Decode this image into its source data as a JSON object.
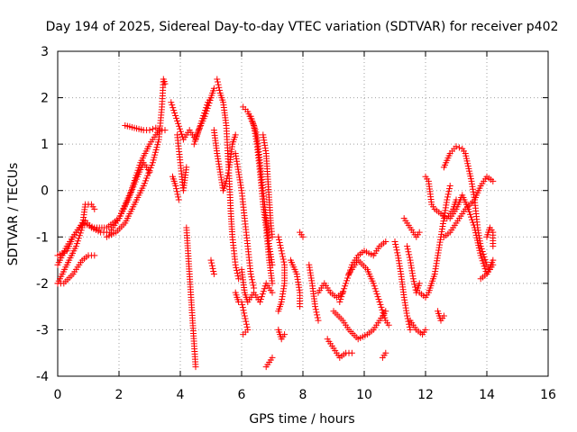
{
  "chart_data": {
    "type": "scatter",
    "title": "Day 194 of 2025, Sidereal Day-to-day VTEC variation (SDTVAR) for receiver p402",
    "xlabel": "GPS time / hours",
    "ylabel": "SDTVAR / TECUs",
    "xlim": [
      0,
      16
    ],
    "ylim": [
      -4,
      3
    ],
    "xticks": [
      "0",
      "2",
      "4",
      "6",
      "8",
      "10",
      "12",
      "14",
      "16"
    ],
    "yticks": [
      "-4",
      "-3",
      "-2",
      "-1",
      "0",
      "1",
      "2",
      "3"
    ],
    "grid": true,
    "marker": "+",
    "marker_color": "#ff0000",
    "series": [
      {
        "tracks": [
          [
            [
              0.0,
              -2.0
            ],
            [
              0.3,
              -1.6
            ],
            [
              0.6,
              -1.2
            ],
            [
              0.8,
              -0.8
            ],
            [
              0.9,
              -0.3
            ],
            [
              1.1,
              -0.3
            ],
            [
              1.2,
              -0.4
            ]
          ],
          [
            [
              0.0,
              -1.6
            ],
            [
              0.3,
              -1.2
            ],
            [
              0.6,
              -0.9
            ],
            [
              0.9,
              -0.65
            ],
            [
              1.1,
              -0.8
            ],
            [
              1.4,
              -0.9
            ],
            [
              1.7,
              -0.9
            ],
            [
              2.0,
              -0.6
            ],
            [
              2.3,
              -0.2
            ],
            [
              2.6,
              0.3
            ],
            [
              2.8,
              0.6
            ],
            [
              3.0,
              0.4
            ]
          ],
          [
            [
              0.0,
              -1.4
            ],
            [
              0.3,
              -1.3
            ],
            [
              0.5,
              -1.0
            ],
            [
              0.8,
              -0.7
            ],
            [
              1.2,
              -0.8
            ],
            [
              1.6,
              -0.8
            ],
            [
              2.0,
              -0.6
            ],
            [
              2.4,
              0.0
            ],
            [
              2.7,
              0.6
            ],
            [
              3.0,
              1.0
            ],
            [
              3.3,
              1.3
            ],
            [
              3.5,
              1.3
            ]
          ],
          [
            [
              0.0,
              -2.0
            ],
            [
              0.2,
              -2.0
            ],
            [
              0.5,
              -1.8
            ],
            [
              0.8,
              -1.5
            ],
            [
              1.0,
              -1.4
            ],
            [
              1.2,
              -1.4
            ]
          ],
          [
            [
              1.6,
              -1.0
            ],
            [
              1.9,
              -0.9
            ],
            [
              2.2,
              -0.7
            ],
            [
              2.5,
              -0.3
            ],
            [
              2.8,
              0.1
            ],
            [
              3.1,
              0.6
            ],
            [
              3.3,
              1.1
            ],
            [
              3.4,
              1.8
            ],
            [
              3.45,
              2.4
            ],
            [
              3.5,
              2.3
            ]
          ],
          [
            [
              2.2,
              1.4
            ],
            [
              2.5,
              1.35
            ],
            [
              2.8,
              1.3
            ],
            [
              3.0,
              1.3
            ],
            [
              3.2,
              1.35
            ]
          ],
          [
            [
              3.7,
              1.9
            ],
            [
              3.9,
              1.5
            ],
            [
              4.1,
              1.1
            ],
            [
              4.3,
              1.3
            ],
            [
              4.5,
              1.1
            ],
            [
              4.7,
              1.5
            ],
            [
              4.9,
              1.9
            ],
            [
              5.0,
              2.0
            ]
          ],
          [
            [
              3.9,
              1.2
            ],
            [
              4.0,
              0.6
            ],
            [
              4.1,
              0.0
            ],
            [
              4.2,
              0.5
            ]
          ],
          [
            [
              3.75,
              0.3
            ],
            [
              3.85,
              0.1
            ],
            [
              3.95,
              -0.2
            ]
          ],
          [
            [
              4.2,
              -0.8
            ],
            [
              4.25,
              -1.3
            ],
            [
              4.3,
              -1.8
            ],
            [
              4.35,
              -2.3
            ],
            [
              4.4,
              -2.8
            ],
            [
              4.45,
              -3.3
            ],
            [
              4.5,
              -3.8
            ]
          ],
          [
            [
              4.45,
              1.0
            ],
            [
              4.6,
              1.3
            ],
            [
              4.8,
              1.6
            ],
            [
              5.0,
              2.0
            ],
            [
              5.1,
              2.2
            ]
          ],
          [
            [
              5.1,
              1.3
            ],
            [
              5.2,
              0.8
            ],
            [
              5.3,
              0.4
            ],
            [
              5.4,
              0.0
            ],
            [
              5.5,
              0.2
            ],
            [
              5.6,
              0.5
            ],
            [
              5.7,
              1.0
            ],
            [
              5.8,
              1.2
            ]
          ],
          [
            [
              5.2,
              2.4
            ],
            [
              5.3,
              2.1
            ],
            [
              5.4,
              1.9
            ],
            [
              5.5,
              1.4
            ],
            [
              5.55,
              0.8
            ],
            [
              5.6,
              0.2
            ],
            [
              5.65,
              -0.5
            ],
            [
              5.7,
              -1.0
            ],
            [
              5.8,
              -1.6
            ],
            [
              5.9,
              -1.9
            ]
          ],
          [
            [
              5.8,
              0.8
            ],
            [
              5.9,
              0.4
            ],
            [
              6.0,
              0.0
            ],
            [
              6.1,
              -0.6
            ],
            [
              6.2,
              -1.2
            ],
            [
              6.3,
              -1.8
            ],
            [
              6.4,
              -2.1
            ]
          ],
          [
            [
              6.05,
              1.8
            ],
            [
              6.2,
              1.7
            ],
            [
              6.4,
              1.4
            ],
            [
              6.5,
              1.0
            ],
            [
              6.6,
              0.4
            ],
            [
              6.7,
              -0.3
            ],
            [
              6.8,
              -0.8
            ],
            [
              6.9,
              -1.5
            ],
            [
              7.0,
              -2.0
            ]
          ],
          [
            [
              6.3,
              1.6
            ],
            [
              6.5,
              1.2
            ],
            [
              6.6,
              0.6
            ],
            [
              6.7,
              0.0
            ],
            [
              6.8,
              -0.6
            ],
            [
              6.9,
              -1.2
            ],
            [
              7.0,
              -1.6
            ]
          ],
          [
            [
              6.7,
              1.2
            ],
            [
              6.8,
              0.8
            ],
            [
              6.85,
              0.3
            ],
            [
              6.9,
              -0.2
            ],
            [
              6.95,
              -0.7
            ],
            [
              7.0,
              -1.0
            ]
          ],
          [
            [
              6.0,
              -1.7
            ],
            [
              6.1,
              -2.2
            ],
            [
              6.2,
              -2.4
            ],
            [
              6.4,
              -2.2
            ],
            [
              6.6,
              -2.4
            ],
            [
              6.8,
              -2.0
            ],
            [
              7.0,
              -2.2
            ]
          ],
          [
            [
              6.0,
              -2.4
            ],
            [
              6.1,
              -2.7
            ],
            [
              6.2,
              -3.0
            ],
            [
              6.05,
              -3.1
            ]
          ],
          [
            [
              5.0,
              -1.5
            ],
            [
              5.1,
              -1.8
            ]
          ],
          [
            [
              5.8,
              -2.2
            ],
            [
              5.9,
              -2.4
            ]
          ],
          [
            [
              6.8,
              -3.8
            ],
            [
              7.0,
              -3.6
            ]
          ],
          [
            [
              7.2,
              -3.0
            ],
            [
              7.3,
              -3.2
            ],
            [
              7.4,
              -3.1
            ]
          ],
          [
            [
              7.2,
              -1.0
            ],
            [
              7.3,
              -1.3
            ],
            [
              7.4,
              -1.6
            ],
            [
              7.4,
              -2.0
            ],
            [
              7.3,
              -2.4
            ],
            [
              7.2,
              -2.6
            ]
          ],
          [
            [
              7.6,
              -1.5
            ],
            [
              7.8,
              -1.8
            ],
            [
              7.9,
              -2.2
            ],
            [
              7.9,
              -2.5
            ]
          ],
          [
            [
              7.9,
              -0.9
            ],
            [
              8.0,
              -1.0
            ]
          ],
          [
            [
              8.2,
              -1.6
            ],
            [
              8.3,
              -2.0
            ],
            [
              8.4,
              -2.5
            ],
            [
              8.5,
              -2.8
            ]
          ],
          [
            [
              8.5,
              -2.2
            ],
            [
              8.7,
              -2.0
            ],
            [
              8.9,
              -2.2
            ],
            [
              9.1,
              -2.3
            ],
            [
              9.3,
              -2.2
            ]
          ],
          [
            [
              8.8,
              -3.2
            ],
            [
              9.0,
              -3.4
            ],
            [
              9.2,
              -3.6
            ],
            [
              9.4,
              -3.5
            ],
            [
              9.6,
              -3.5
            ]
          ],
          [
            [
              9.2,
              -2.4
            ],
            [
              9.4,
              -2.0
            ],
            [
              9.6,
              -1.6
            ],
            [
              9.8,
              -1.4
            ],
            [
              10.0,
              -1.3
            ],
            [
              10.3,
              -1.4
            ],
            [
              10.5,
              -1.2
            ],
            [
              10.7,
              -1.1
            ]
          ],
          [
            [
              9.0,
              -2.6
            ],
            [
              9.3,
              -2.8
            ],
            [
              9.5,
              -3.0
            ],
            [
              9.8,
              -3.2
            ],
            [
              10.1,
              -3.1
            ],
            [
              10.3,
              -3.0
            ],
            [
              10.5,
              -2.8
            ],
            [
              10.7,
              -2.6
            ]
          ],
          [
            [
              9.5,
              -1.8
            ],
            [
              9.8,
              -1.5
            ],
            [
              10.1,
              -1.7
            ],
            [
              10.3,
              -2.0
            ],
            [
              10.5,
              -2.4
            ],
            [
              10.7,
              -2.8
            ],
            [
              10.8,
              -2.9
            ]
          ],
          [
            [
              10.6,
              -3.6
            ],
            [
              10.7,
              -3.5
            ]
          ],
          [
            [
              11.0,
              -1.1
            ],
            [
              11.1,
              -1.4
            ],
            [
              11.2,
              -1.8
            ],
            [
              11.3,
              -2.3
            ],
            [
              11.4,
              -2.7
            ],
            [
              11.5,
              -3.0
            ]
          ],
          [
            [
              11.3,
              -0.6
            ],
            [
              11.5,
              -0.8
            ],
            [
              11.7,
              -1.0
            ],
            [
              11.8,
              -0.9
            ]
          ],
          [
            [
              11.4,
              -1.2
            ],
            [
              11.5,
              -1.5
            ],
            [
              11.6,
              -1.9
            ],
            [
              11.7,
              -2.2
            ],
            [
              11.8,
              -2.0
            ]
          ],
          [
            [
              11.5,
              -2.8
            ],
            [
              11.7,
              -3.0
            ],
            [
              11.9,
              -3.1
            ],
            [
              12.0,
              -3.0
            ]
          ],
          [
            [
              11.8,
              -2.2
            ],
            [
              12.0,
              -2.3
            ],
            [
              12.1,
              -2.2
            ],
            [
              12.2,
              -2.0
            ],
            [
              12.3,
              -1.8
            ],
            [
              12.4,
              -1.4
            ],
            [
              12.5,
              -1.0
            ],
            [
              12.6,
              -0.6
            ],
            [
              12.7,
              -0.2
            ],
            [
              12.8,
              0.1
            ]
          ],
          [
            [
              12.0,
              0.3
            ],
            [
              12.1,
              0.2
            ],
            [
              12.2,
              -0.3
            ],
            [
              12.3,
              -0.4
            ],
            [
              12.5,
              -0.5
            ],
            [
              12.7,
              -0.6
            ],
            [
              12.9,
              -0.4
            ],
            [
              13.0,
              -0.2
            ]
          ],
          [
            [
              12.4,
              -2.6
            ],
            [
              12.5,
              -2.8
            ],
            [
              12.6,
              -2.7
            ]
          ],
          [
            [
              12.6,
              0.5
            ],
            [
              12.8,
              0.8
            ],
            [
              13.0,
              0.95
            ],
            [
              13.2,
              0.9
            ],
            [
              13.3,
              0.8
            ],
            [
              13.5,
              0.2
            ],
            [
              13.6,
              -0.2
            ],
            [
              13.7,
              -0.8
            ],
            [
              13.8,
              -1.2
            ],
            [
              14.0,
              -1.6
            ],
            [
              14.1,
              -1.7
            ]
          ],
          [
            [
              12.8,
              -0.6
            ],
            [
              13.0,
              -0.4
            ],
            [
              13.2,
              -0.1
            ],
            [
              13.4,
              -0.4
            ],
            [
              13.6,
              -0.8
            ],
            [
              13.8,
              -1.4
            ],
            [
              14.0,
              -1.8
            ],
            [
              14.2,
              -1.6
            ]
          ],
          [
            [
              12.6,
              -1.0
            ],
            [
              12.8,
              -0.9
            ],
            [
              13.0,
              -0.7
            ],
            [
              13.3,
              -0.4
            ],
            [
              13.6,
              -0.2
            ],
            [
              13.8,
              0.1
            ],
            [
              14.0,
              0.3
            ],
            [
              14.2,
              0.2
            ]
          ],
          [
            [
              13.8,
              -1.9
            ],
            [
              14.0,
              -1.8
            ],
            [
              14.2,
              -1.5
            ]
          ],
          [
            [
              14.0,
              -1.0
            ],
            [
              14.1,
              -0.8
            ],
            [
              14.2,
              -0.9
            ],
            [
              14.2,
              -1.2
            ]
          ]
        ]
      }
    ]
  }
}
